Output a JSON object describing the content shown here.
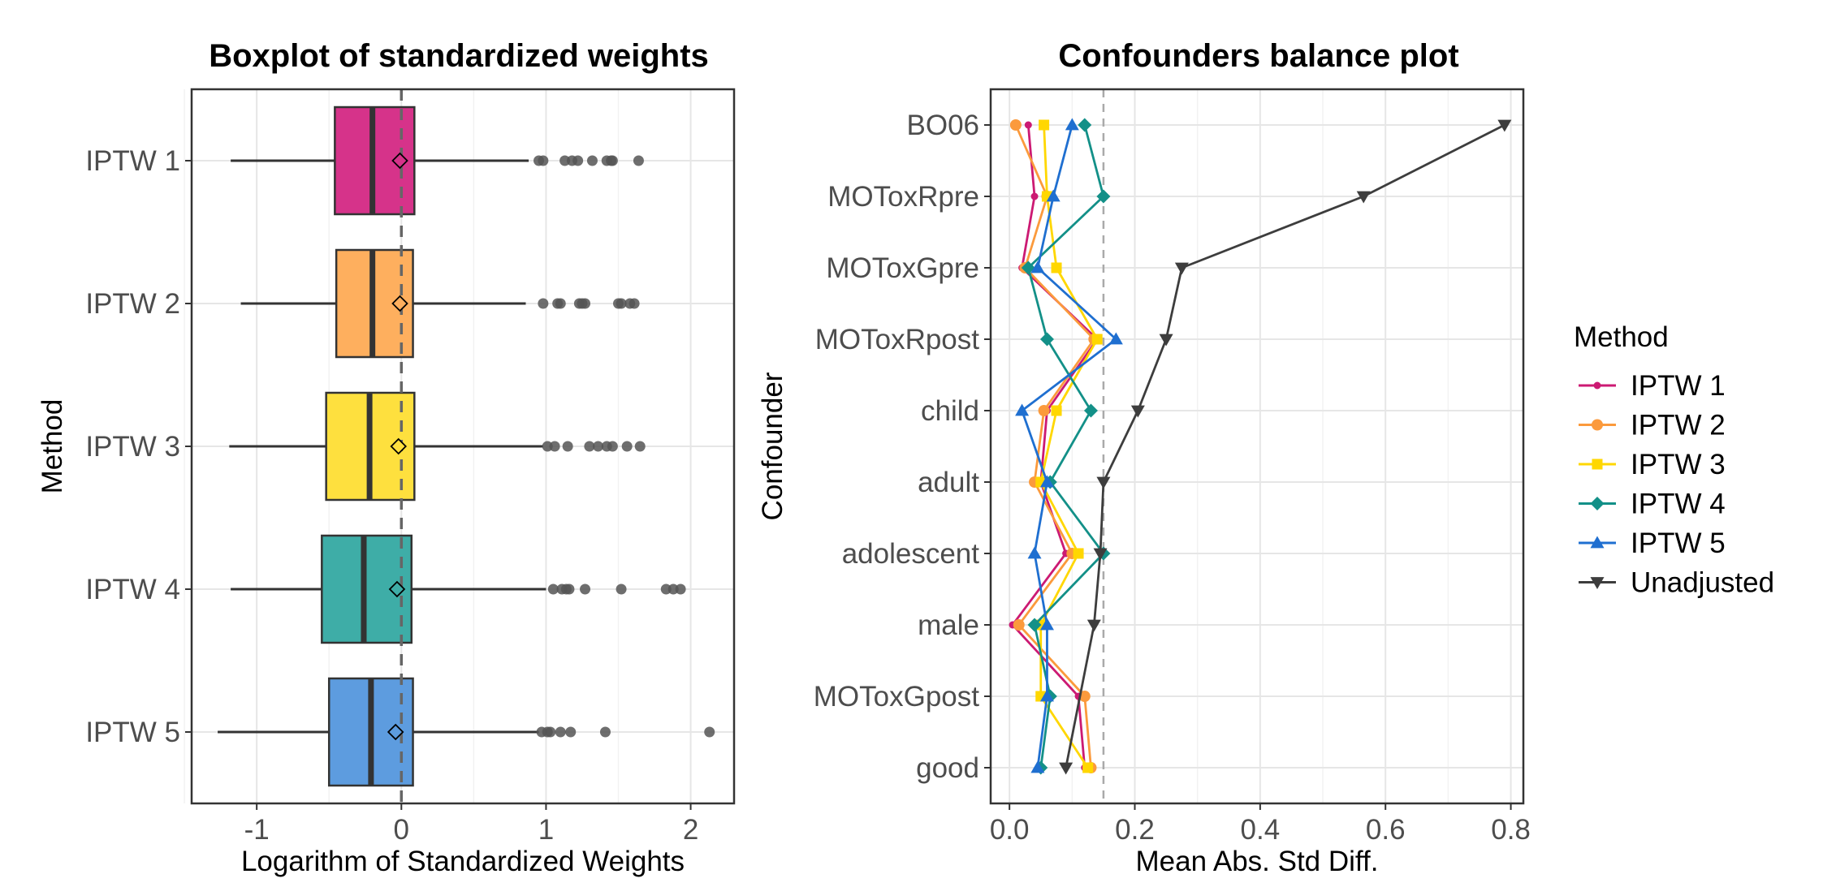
{
  "chart_data": [
    {
      "type": "boxplot",
      "title": "Boxplot of standardized weights",
      "xlabel": "Logarithm of Standardized Weights",
      "ylabel": "Method",
      "xlim": [
        -1.45,
        2.3
      ],
      "xticks": [
        -1,
        0,
        1,
        2
      ],
      "xtick_labels": [
        "-1",
        "0",
        "1",
        "2"
      ],
      "reference_line_x": 0,
      "categories": [
        "IPTW 1",
        "IPTW 2",
        "IPTW 3",
        "IPTW 4",
        "IPTW 5"
      ],
      "boxes": [
        {
          "name": "IPTW 1",
          "whisker_low": -1.18,
          "q1": -0.46,
          "median": -0.2,
          "q3": 0.09,
          "whisker_high": 0.88,
          "mean": -0.01,
          "outliers": [
            0.95,
            0.98,
            1.13,
            1.18,
            1.22,
            1.32,
            1.42,
            1.45,
            1.46,
            1.64
          ],
          "color": "#D6338A"
        },
        {
          "name": "IPTW 2",
          "whisker_low": -1.11,
          "q1": -0.45,
          "median": -0.2,
          "q3": 0.08,
          "whisker_high": 0.86,
          "mean": -0.01,
          "outliers": [
            0.98,
            1.08,
            1.1,
            1.23,
            1.25,
            1.27,
            1.5,
            1.52,
            1.58,
            1.61
          ],
          "color": "#FEAF5E"
        },
        {
          "name": "IPTW 3",
          "whisker_low": -1.19,
          "q1": -0.52,
          "median": -0.22,
          "q3": 0.09,
          "whisker_high": 0.98,
          "mean": -0.02,
          "outliers": [
            1.01,
            1.06,
            1.15,
            1.3,
            1.36,
            1.42,
            1.46,
            1.56,
            1.65
          ],
          "color": "#FEE03E"
        },
        {
          "name": "IPTW 4",
          "whisker_low": -1.18,
          "q1": -0.55,
          "median": -0.26,
          "q3": 0.07,
          "whisker_high": 1.0,
          "mean": -0.03,
          "outliers": [
            1.05,
            1.11,
            1.14,
            1.16,
            1.27,
            1.52,
            1.83,
            1.88,
            1.93
          ],
          "color": "#3EADA7"
        },
        {
          "name": "IPTW 5",
          "whisker_low": -1.27,
          "q1": -0.5,
          "median": -0.21,
          "q3": 0.08,
          "whisker_high": 0.95,
          "mean": -0.04,
          "outliers": [
            0.97,
            1.01,
            1.03,
            1.1,
            1.17,
            1.41,
            2.13
          ],
          "color": "#5D9CDF"
        }
      ]
    },
    {
      "type": "line",
      "title": "Confounders balance plot",
      "xlabel": "Mean Abs. Std Diff.",
      "ylabel": "Confounder",
      "xlim": [
        -0.03,
        0.82
      ],
      "xticks": [
        0.0,
        0.2,
        0.4,
        0.6,
        0.8
      ],
      "xtick_labels": [
        "0.0",
        "0.2",
        "0.4",
        "0.6",
        "0.8"
      ],
      "threshold_line_x": 0.15,
      "categories": [
        "BO06",
        "MOToxRpre",
        "MOToxGpre",
        "MOToxRpost",
        "child",
        "adult",
        "adolescent",
        "male",
        "MOToxGpost",
        "good"
      ],
      "legend_title": "Method",
      "legend_position": "right",
      "series": [
        {
          "name": "IPTW 1",
          "color": "#CC1A73",
          "marker": "circle-small",
          "values": [
            0.03,
            0.04,
            0.02,
            0.14,
            0.06,
            0.05,
            0.09,
            0.005,
            0.11,
            0.12
          ]
        },
        {
          "name": "IPTW 2",
          "color": "#FB9A3C",
          "marker": "circle",
          "values": [
            0.01,
            0.06,
            0.025,
            0.135,
            0.055,
            0.04,
            0.1,
            0.015,
            0.12,
            0.13
          ]
        },
        {
          "name": "IPTW 3",
          "color": "#FFD700",
          "marker": "square",
          "values": [
            0.055,
            0.06,
            0.075,
            0.14,
            0.075,
            0.05,
            0.11,
            0.05,
            0.05,
            0.125
          ]
        },
        {
          "name": "IPTW 4",
          "color": "#139088",
          "marker": "diamond",
          "values": [
            0.12,
            0.15,
            0.03,
            0.06,
            0.13,
            0.065,
            0.15,
            0.04,
            0.065,
            0.05
          ]
        },
        {
          "name": "IPTW 5",
          "color": "#1F6FD0",
          "marker": "triangle-up",
          "values": [
            0.1,
            0.07,
            0.045,
            0.17,
            0.02,
            0.06,
            0.04,
            0.06,
            0.06,
            0.045
          ]
        },
        {
          "name": "Unadjusted",
          "color": "#3D3D3D",
          "marker": "triangle-down",
          "values": [
            0.79,
            0.565,
            0.275,
            0.25,
            0.205,
            0.15,
            0.145,
            0.135,
            null,
            0.09
          ]
        }
      ]
    }
  ]
}
